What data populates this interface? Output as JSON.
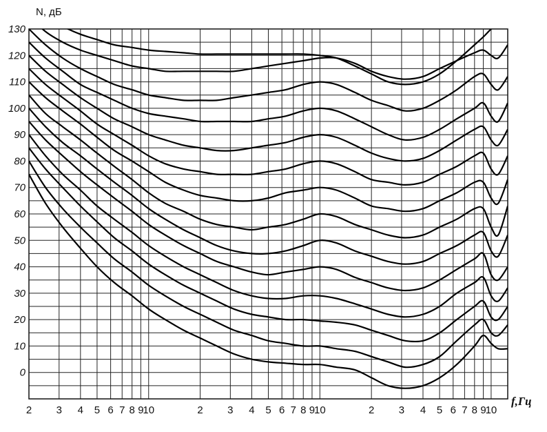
{
  "chart_data": {
    "type": "line",
    "ylabel": "N, дБ",
    "xlabel": "f,Гц",
    "x_scale": "log",
    "xlim": [
      20,
      12500
    ],
    "ylim": [
      -10,
      130
    ],
    "grid": true,
    "legend": "none",
    "y_ticks": [
      130,
      120,
      110,
      100,
      90,
      80,
      70,
      60,
      50,
      40,
      30,
      20,
      10,
      0
    ],
    "y_tick_labels": [
      "130",
      "120",
      "110",
      "100",
      "90",
      "80",
      "70",
      "60",
      "50",
      "40",
      "30",
      "20",
      "10",
      "0"
    ],
    "x_ticks": [
      20,
      30,
      40,
      50,
      60,
      70,
      80,
      90,
      100,
      200,
      300,
      400,
      500,
      600,
      700,
      800,
      900,
      1000,
      2000,
      3000,
      4000,
      5000,
      6000,
      7000,
      8000,
      9000,
      10000
    ],
    "x_tick_labels": [
      "2",
      "3",
      "4",
      "5",
      "6",
      "7",
      "8",
      "9",
      "10",
      "2",
      "3",
      "4",
      "5",
      "6",
      "7",
      "8",
      "9",
      "10",
      "2",
      "3",
      "4",
      "5",
      "6",
      "7",
      "8",
      "9",
      "10"
    ],
    "series_x": [
      20,
      25,
      31.5,
      40,
      50,
      63,
      80,
      100,
      125,
      160,
      200,
      250,
      315,
      400,
      500,
      630,
      800,
      1000,
      1250,
      1600,
      2000,
      2500,
      3150,
      4000,
      5000,
      6300,
      8000,
      9000,
      10000,
      11000,
      12500
    ],
    "series": [
      {
        "values": [
          75,
          64,
          55,
          47,
          40,
          34,
          29,
          24,
          20,
          16,
          13,
          10,
          7,
          5,
          4,
          3.5,
          3,
          3,
          2,
          1,
          -2,
          -5,
          -6,
          -5,
          -2,
          3,
          10,
          14,
          11,
          9,
          9
        ]
      },
      {
        "values": [
          80,
          70,
          62,
          55,
          49,
          43,
          38,
          33,
          29,
          25,
          22,
          19,
          16,
          14,
          12,
          11,
          10,
          10,
          9,
          8,
          6,
          4,
          2,
          3,
          6,
          12,
          18,
          20,
          15,
          14,
          18
        ]
      },
      {
        "values": [
          85,
          77,
          70,
          63,
          57,
          51,
          46,
          41,
          37,
          33,
          30,
          27,
          24,
          22,
          21,
          20,
          20,
          19.5,
          19,
          18,
          16,
          14,
          12,
          12,
          15,
          20,
          25,
          27,
          21,
          20,
          25
        ]
      },
      {
        "values": [
          90,
          82,
          75,
          69,
          63,
          58,
          53,
          48,
          44,
          40,
          37,
          34,
          31,
          29,
          28,
          28,
          29,
          29,
          28,
          26,
          24,
          22,
          21,
          22,
          25,
          30,
          34,
          36,
          29,
          27,
          32
        ]
      },
      {
        "values": [
          95,
          88,
          82,
          76,
          71,
          66,
          61,
          56,
          52,
          48,
          45,
          42,
          40,
          38,
          37,
          38,
          39,
          40,
          39,
          36,
          34,
          32,
          31,
          32,
          35,
          39,
          43,
          45,
          37,
          35,
          40
        ]
      },
      {
        "values": [
          100,
          93,
          87,
          82,
          77,
          72,
          67,
          62,
          58,
          54,
          51,
          48,
          46,
          45,
          45,
          46,
          48,
          50,
          49,
          46,
          44,
          42,
          41,
          42,
          45,
          48,
          52,
          53,
          46,
          44,
          52
        ]
      },
      {
        "values": [
          105,
          98,
          93,
          88,
          83,
          78,
          73,
          68,
          64,
          61,
          58,
          56,
          55,
          54,
          55,
          56,
          58,
          60,
          59,
          56,
          54,
          52,
          51,
          52,
          55,
          58,
          62,
          62,
          55,
          52,
          63
        ]
      },
      {
        "values": [
          110,
          104,
          99,
          94,
          89,
          84,
          80,
          76,
          72,
          69,
          67,
          66,
          65,
          65,
          66,
          68,
          69,
          70,
          69,
          66,
          63,
          62,
          61,
          62,
          65,
          68,
          72,
          72,
          66,
          64,
          73
        ]
      },
      {
        "values": [
          115,
          109,
          104,
          99,
          94,
          90,
          86,
          82,
          79,
          77,
          76,
          75,
          75,
          75,
          76,
          77,
          79,
          80,
          79,
          76,
          73,
          72,
          71,
          72,
          75,
          78,
          82,
          83,
          77,
          75,
          82
        ]
      },
      {
        "values": [
          120,
          114,
          109,
          104,
          100,
          96,
          93,
          90,
          88,
          86,
          85,
          84,
          84,
          85,
          86,
          87,
          89,
          90,
          89,
          86,
          83,
          81,
          80,
          81,
          84,
          88,
          92,
          93,
          88,
          86,
          92
        ]
      },
      {
        "values": [
          125,
          119,
          114,
          109,
          106,
          103,
          100,
          98,
          97,
          96,
          95,
          95,
          95,
          95,
          96,
          97,
          99,
          100,
          99,
          96,
          93,
          90,
          88,
          89,
          92,
          96,
          100,
          102,
          97,
          95,
          102
        ]
      },
      {
        "values": [
          130,
          124,
          119,
          115,
          112,
          109,
          107,
          105,
          104,
          103,
          103,
          103,
          104,
          105,
          106,
          107,
          109,
          110,
          109,
          106,
          103,
          101,
          99,
          100,
          103,
          107,
          112,
          113,
          109,
          107,
          112
        ]
      },
      {
        "values": [
          135,
          129,
          125,
          122,
          120,
          118,
          116,
          115,
          114,
          114,
          114,
          114,
          114,
          115,
          116,
          117,
          118,
          119,
          119,
          117,
          114,
          112,
          111,
          112,
          115,
          118,
          121,
          122,
          120,
          119,
          124
        ]
      },
      {
        "values": [
          140,
          135,
          131,
          128,
          126,
          124,
          123,
          122,
          121.5,
          121,
          120.5,
          120.5,
          120.5,
          120.5,
          120.5,
          120.5,
          120.5,
          120,
          119,
          116,
          113,
          110,
          109,
          110,
          113,
          118,
          124,
          127,
          130,
          132,
          136
        ]
      }
    ]
  }
}
